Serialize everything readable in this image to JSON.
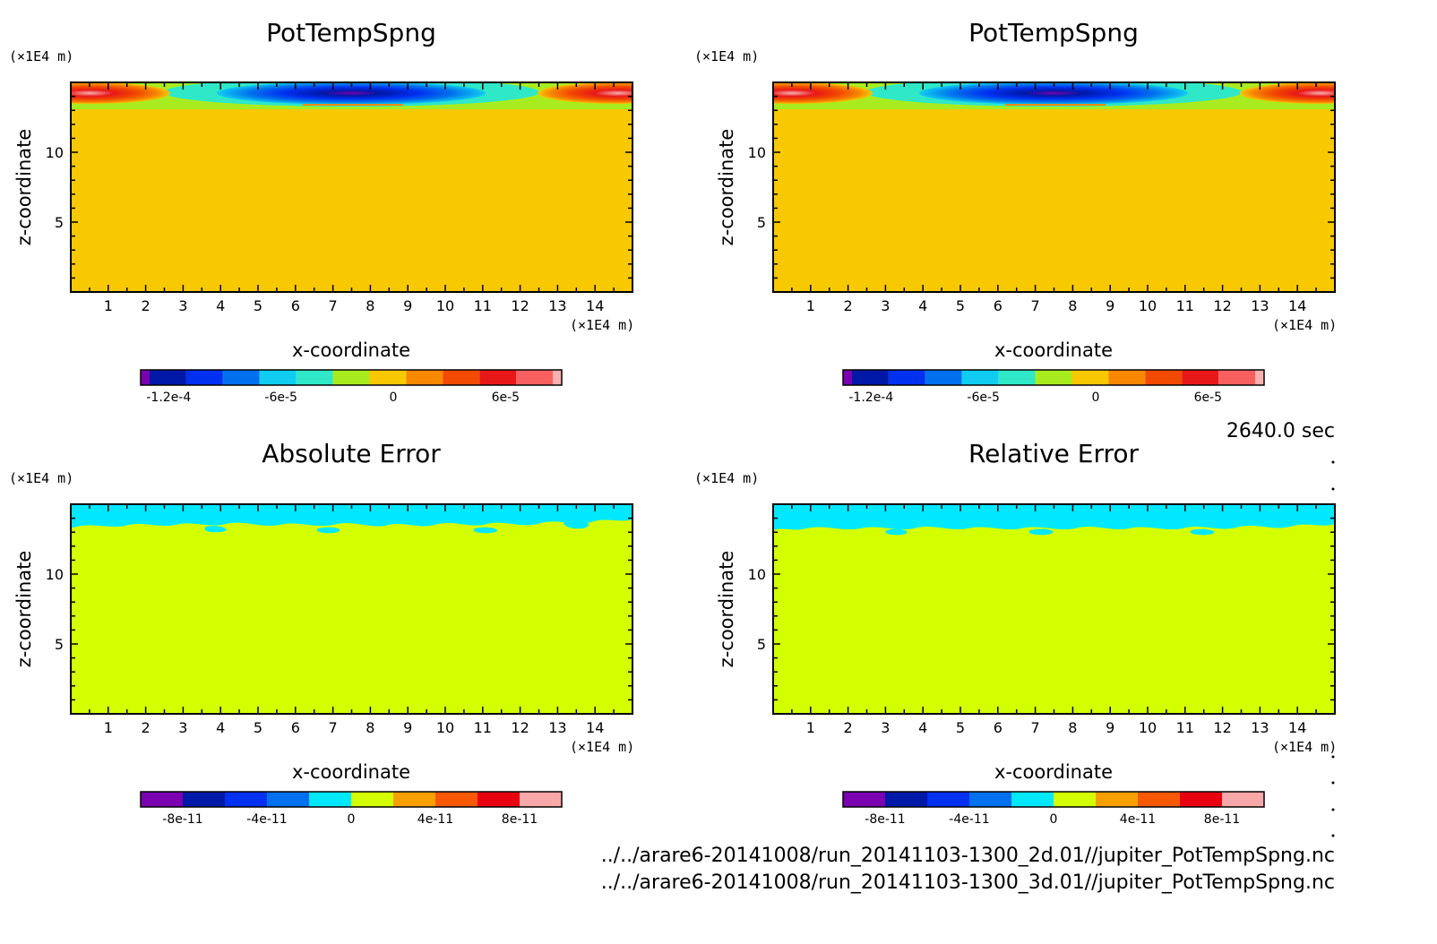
{
  "time_label": "2640.0 sec",
  "file_paths": [
    "../../arare6-20141008/run_20141103-1300_2d.01//jupiter_PotTempSpng.nc",
    "../../arare6-20141008/run_20141103-1300_3d.01//jupiter_PotTempSpng.nc"
  ],
  "colors": {
    "field_scale": [
      "#7a00b0",
      "#0018a8",
      "#0030f0",
      "#0070ee",
      "#10ccf0",
      "#2ee8c8",
      "#a8ec20",
      "#f8c800",
      "#f88800",
      "#f24a00",
      "#e81818",
      "#f86060",
      "#f8b0b0"
    ],
    "error_scale": [
      "#7a00b0",
      "#0018a8",
      "#0030f0",
      "#0070ee",
      "#00e8ff",
      "#d4ff00",
      "#f8a000",
      "#f85800",
      "#e80010",
      "#f8a8a8"
    ]
  },
  "chart_data": [
    {
      "type": "heatmap",
      "title": "PotTempSpng",
      "xlabel": "x-coordinate",
      "ylabel": "z-coordinate",
      "x_unit": "(×1E4 m)",
      "y_unit": "(×1E4 m)",
      "xlim": [
        0,
        15
      ],
      "ylim": [
        0,
        15
      ],
      "x_ticks": [
        "1",
        "2",
        "3",
        "4",
        "5",
        "6",
        "7",
        "8",
        "9",
        "10",
        "11",
        "12",
        "13",
        "14"
      ],
      "y_ticks": [
        "5",
        "10"
      ],
      "background_value": "0",
      "colorbar": {
        "labels": [
          "-1.2e-4",
          "-6e-5",
          "0",
          "6e-5"
        ],
        "range": [
          -0.000135,
          9e-05
        ]
      },
      "features": [
        {
          "desc": "negative anomaly band near model top",
          "x_range": [
            4,
            11
          ],
          "z_range": [
            13,
            15
          ],
          "min_value": -0.00012
        },
        {
          "desc": "positive anomaly left edge near top",
          "x_range": [
            0,
            3
          ],
          "z_range": [
            13,
            15
          ],
          "max_value": 8e-05
        },
        {
          "desc": "positive anomaly right edge near top",
          "x_range": [
            12,
            15
          ],
          "z_range": [
            13,
            15
          ],
          "max_value": 8e-05
        }
      ]
    },
    {
      "type": "heatmap",
      "title": "PotTempSpng",
      "xlabel": "x-coordinate",
      "ylabel": "z-coordinate",
      "x_unit": "(×1E4 m)",
      "y_unit": "(×1E4 m)",
      "xlim": [
        0,
        15
      ],
      "ylim": [
        0,
        15
      ],
      "x_ticks": [
        "1",
        "2",
        "3",
        "4",
        "5",
        "6",
        "7",
        "8",
        "9",
        "10",
        "11",
        "12",
        "13",
        "14"
      ],
      "y_ticks": [
        "5",
        "10"
      ],
      "background_value": "0",
      "colorbar": {
        "labels": [
          "-1.2e-4",
          "-6e-5",
          "0",
          "6e-5"
        ],
        "range": [
          -0.000135,
          9e-05
        ]
      },
      "features": [
        {
          "desc": "negative anomaly band near model top",
          "x_range": [
            4,
            11
          ],
          "z_range": [
            13,
            15
          ],
          "min_value": -0.00012
        },
        {
          "desc": "positive anomaly left edge near top",
          "x_range": [
            0,
            3
          ],
          "z_range": [
            13,
            15
          ],
          "max_value": 8e-05
        },
        {
          "desc": "positive anomaly right edge near top",
          "x_range": [
            12,
            15
          ],
          "z_range": [
            13,
            15
          ],
          "max_value": 8e-05
        }
      ]
    },
    {
      "type": "heatmap",
      "title": "Absolute Error",
      "xlabel": "x-coordinate",
      "ylabel": "z-coordinate",
      "x_unit": "(×1E4 m)",
      "y_unit": "(×1E4 m)",
      "xlim": [
        0,
        15
      ],
      "ylim": [
        0,
        15
      ],
      "x_ticks": [
        "1",
        "2",
        "3",
        "4",
        "5",
        "6",
        "7",
        "8",
        "9",
        "10",
        "11",
        "12",
        "13",
        "14"
      ],
      "y_ticks": [
        "5",
        "10"
      ],
      "background_value": "0",
      "colorbar": {
        "labels": [
          "-8e-11",
          "-4e-11",
          "0",
          "4e-11",
          "8e-11"
        ],
        "range": [
          -1e-10,
          1e-10
        ]
      },
      "features": [
        {
          "desc": "small negative error patches near model top",
          "x_range": [
            0,
            15
          ],
          "z_range": [
            13,
            15
          ],
          "value": -1e-11
        }
      ]
    },
    {
      "type": "heatmap",
      "title": "Relative Error",
      "xlabel": "x-coordinate",
      "ylabel": "z-coordinate",
      "x_unit": "(×1E4 m)",
      "y_unit": "(×1E4 m)",
      "xlim": [
        0,
        15
      ],
      "ylim": [
        0,
        15
      ],
      "x_ticks": [
        "1",
        "2",
        "3",
        "4",
        "5",
        "6",
        "7",
        "8",
        "9",
        "10",
        "11",
        "12",
        "13",
        "14"
      ],
      "y_ticks": [
        "5",
        "10"
      ],
      "background_value": "0",
      "colorbar": {
        "labels": [
          "-8e-11",
          "-4e-11",
          "0",
          "4e-11",
          "8e-11"
        ],
        "range": [
          -1e-10,
          1e-10
        ]
      },
      "features": [
        {
          "desc": "small negative error patches near model top",
          "x_range": [
            0,
            15
          ],
          "z_range": [
            13,
            15
          ],
          "value": -1e-11
        }
      ]
    }
  ]
}
